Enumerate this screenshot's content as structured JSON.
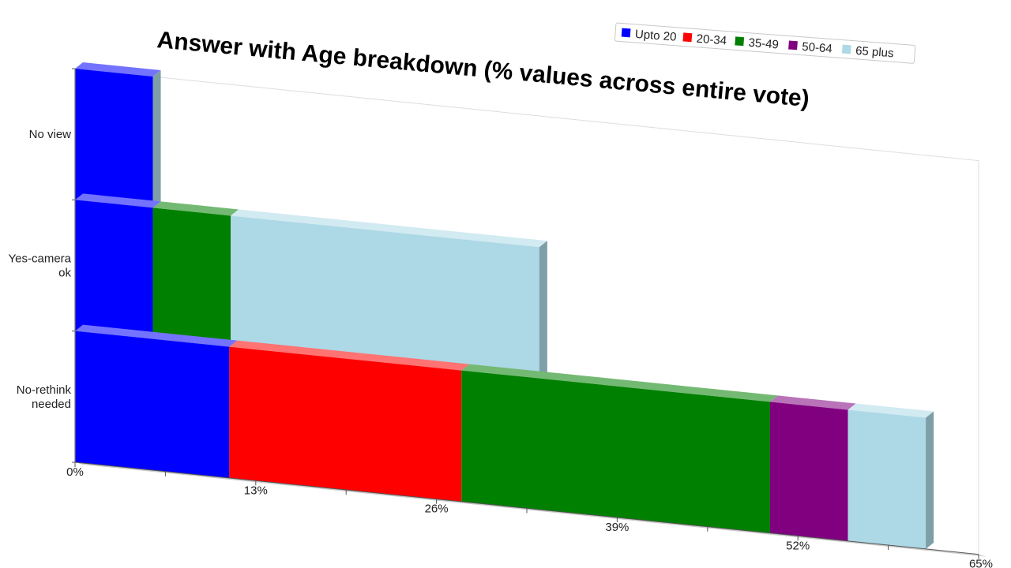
{
  "chart_data": {
    "type": "bar",
    "orientation": "horizontal",
    "stacked": true,
    "title": "Answer with Age breakdown (% values across entire vote)",
    "categories": [
      "No view",
      "Yes-camera ok",
      "No-rethink needed"
    ],
    "category_labels": [
      [
        "No view"
      ],
      [
        "Yes-camera",
        "ok"
      ],
      [
        "No-rethink",
        "needed"
      ]
    ],
    "xlim": [
      0,
      65
    ],
    "xticks": [
      "0%",
      "13%",
      "26%",
      "39%",
      "52%",
      "65%"
    ],
    "tick_values": [
      0,
      13,
      26,
      39,
      52,
      65
    ],
    "legend_position": "top-right",
    "series": [
      {
        "name": "Upto 20",
        "color": "#0000ff",
        "values": [
          5.6,
          5.6,
          11.1
        ]
      },
      {
        "name": "20-34",
        "color": "#ff0000",
        "values": [
          0,
          0,
          16.7
        ]
      },
      {
        "name": "35-49",
        "color": "#008000",
        "values": [
          0,
          5.6,
          22.2
        ]
      },
      {
        "name": "50-64",
        "color": "#800080",
        "values": [
          0,
          0,
          5.6
        ]
      },
      {
        "name": "65 plus",
        "color": "#add8e6",
        "values": [
          0,
          22.2,
          5.6
        ]
      }
    ]
  }
}
